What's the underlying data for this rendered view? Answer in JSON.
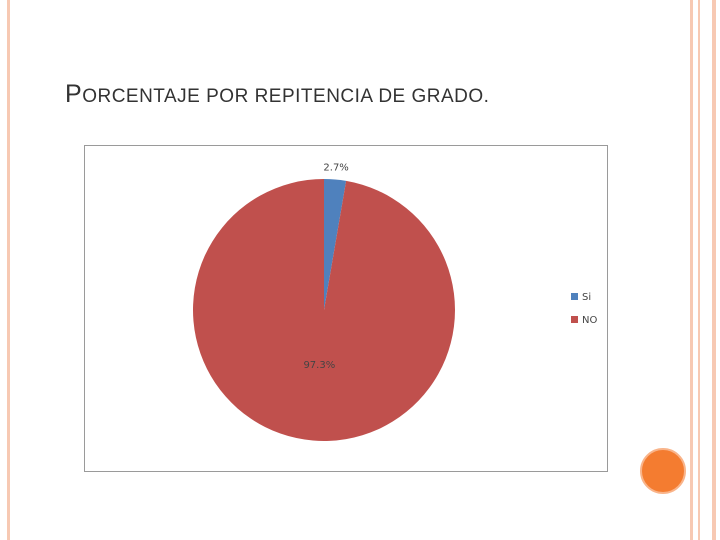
{
  "chart_data": {
    "type": "pie",
    "title": "PORCENTAJE POR REPITENCIA DE GRADO.",
    "categories": [
      "Si",
      "NO"
    ],
    "values": [
      2.7,
      97.3
    ],
    "value_labels": [
      "2.7%",
      "97.3%"
    ],
    "colors": [
      "#4f81bd",
      "#c0504d"
    ],
    "legend": "right"
  }
}
